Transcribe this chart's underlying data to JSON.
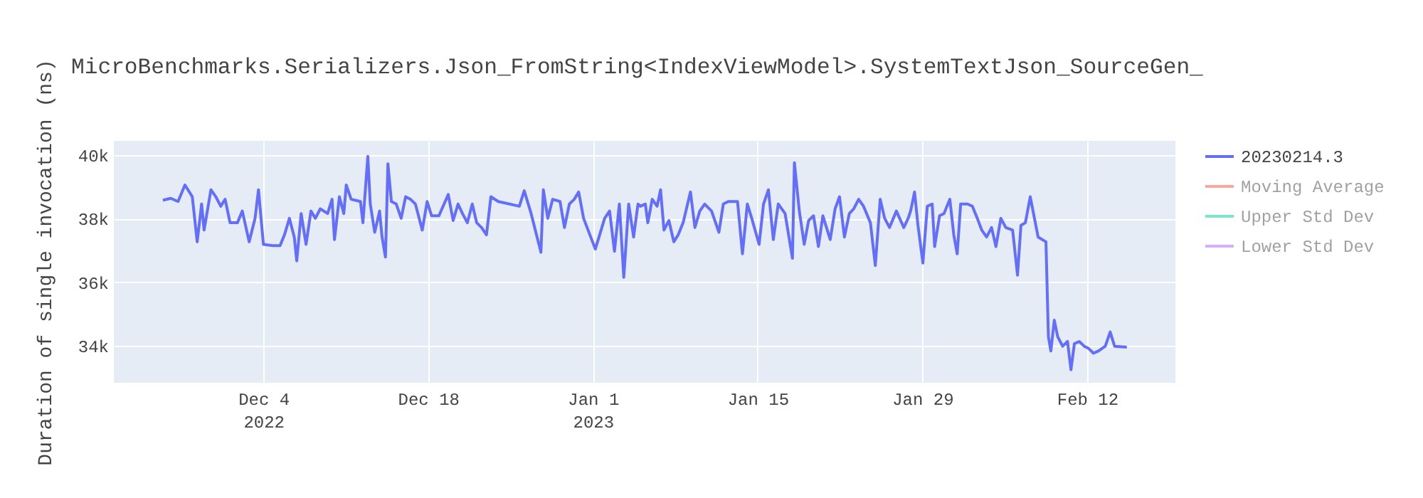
{
  "chart_data": {
    "type": "line",
    "title": "MicroBenchmarks.Serializers.Json_FromString<IndexViewModel>.SystemTextJson_SourceGen_",
    "ylabel": "Duration of single invocation (ns)",
    "x": [
      "2022-11-25T11:00",
      "2022-11-26T03:00",
      "2022-11-26T18:00",
      "2022-11-27T08:00",
      "2022-11-27T23:00",
      "2022-11-28T09:00",
      "2022-11-28T18:00",
      "2022-11-28T23:00",
      "2022-11-29T04:00",
      "2022-11-29T13:00",
      "2022-11-29T23:00",
      "2022-11-30T09:00",
      "2022-11-30T18:00",
      "2022-12-01T04:00",
      "2022-12-01T19:00",
      "2022-12-02T05:00",
      "2022-12-02T19:00",
      "2022-12-03T07:00",
      "2022-12-03T14:00",
      "2022-12-04T00:00",
      "2022-12-04T19:00",
      "2022-12-05T10:00",
      "2022-12-05T19:00",
      "2022-12-06T05:00",
      "2022-12-06T15:00",
      "2022-12-06T20:00",
      "2022-12-07T05:00",
      "2022-12-07T15:00",
      "2022-12-08T01:00",
      "2022-12-08T10:00",
      "2022-12-08T20:00",
      "2022-12-09T11:00",
      "2022-12-09T20:00",
      "2022-12-10T01:00",
      "2022-12-10T11:00",
      "2022-12-10T20:00",
      "2022-12-11T01:00",
      "2022-12-11T11:00",
      "2022-12-12T06:00",
      "2022-12-12T11:00",
      "2022-12-12T21:00",
      "2022-12-13T02:00",
      "2022-12-13T11:00",
      "2022-12-13T21:00",
      "2022-12-14T02:00",
      "2022-12-14T09:00",
      "2022-12-14T14:00",
      "2022-12-14T21:00",
      "2022-12-15T07:00",
      "2022-12-15T17:00",
      "2022-12-16T02:00",
      "2022-12-16T12:00",
      "2022-12-16T22:00",
      "2022-12-17T12:00",
      "2022-12-17T22:00",
      "2022-12-18T07:00",
      "2022-12-18T22:00",
      "2022-12-19T17:00",
      "2022-12-20T03:00",
      "2022-12-20T13:00",
      "2022-12-20T22:00",
      "2022-12-21T08:00",
      "2022-12-21T18:00",
      "2022-12-22T03:00",
      "2022-12-22T13:00",
      "2022-12-22T23:00",
      "2022-12-23T08:00",
      "2022-12-23T23:00",
      "2022-12-25T18:00",
      "2022-12-26T04:00",
      "2022-12-26T18:00",
      "2022-12-27T14:00",
      "2022-12-27T19:00",
      "2022-12-28T04:00",
      "2022-12-28T14:00",
      "2022-12-29T05:00",
      "2022-12-29T14:00",
      "2022-12-30T00:00",
      "2022-12-30T10:00",
      "2022-12-30T19:00",
      "2022-12-31T05:00",
      "2023-01-01T05:00",
      "2023-01-02T00:00",
      "2023-01-02T10:00",
      "2023-01-02T20:00",
      "2023-01-03T06:00",
      "2023-01-03T15:00",
      "2023-01-04T01:00",
      "2023-01-04T11:00",
      "2023-01-04T20:00",
      "2023-01-05T01:00",
      "2023-01-05T11:00",
      "2023-01-05T16:00",
      "2023-01-06T01:00",
      "2023-01-06T11:00",
      "2023-01-06T18:00",
      "2023-01-07T01:00",
      "2023-01-07T11:00",
      "2023-01-07T21:00",
      "2023-01-08T06:00",
      "2023-01-08T16:00",
      "2023-01-09T07:00",
      "2023-01-09T16:00",
      "2023-01-10T02:00",
      "2023-01-10T12:00",
      "2023-01-11T02:00",
      "2023-01-11T17:00",
      "2023-01-12T02:00",
      "2023-01-12T12:00",
      "2023-01-13T07:00",
      "2023-01-13T17:00",
      "2023-01-14T03:00",
      "2023-01-14T12:00",
      "2023-01-15T03:00",
      "2023-01-15T12:00",
      "2023-01-15T22:00",
      "2023-01-16T08:00",
      "2023-01-16T18:00",
      "2023-01-17T08:00",
      "2023-01-17T23:00",
      "2023-01-18T03:00",
      "2023-01-18T13:00",
      "2023-01-18T23:00",
      "2023-01-19T08:00",
      "2023-01-19T18:00",
      "2023-01-20T04:00",
      "2023-01-20T13:00",
      "2023-01-21T04:00",
      "2023-01-21T14:00",
      "2023-01-21T23:00",
      "2023-01-22T09:00",
      "2023-01-22T19:00",
      "2023-01-23T04:00",
      "2023-01-23T14:00",
      "2023-01-24T00:00",
      "2023-01-24T14:00",
      "2023-01-25T00:00",
      "2023-01-25T10:00",
      "2023-01-25T19:00",
      "2023-01-26T05:00",
      "2023-01-26T19:00",
      "2023-01-27T10:00",
      "2023-01-27T19:00",
      "2023-01-28T00:00",
      "2023-01-28T08:00",
      "2023-01-28T15:00",
      "2023-01-29T01:00",
      "2023-01-29T10:00",
      "2023-01-29T20:00",
      "2023-01-30T01:00",
      "2023-01-30T11:00",
      "2023-01-30T20:00",
      "2023-01-31T08:00",
      "2023-01-31T16:00",
      "2023-01-31T23:00",
      "2023-02-01T06:00",
      "2023-02-01T20:00",
      "2023-02-02T06:00",
      "2023-02-02T16:00",
      "2023-02-03T01:00",
      "2023-02-03T11:00",
      "2023-02-03T21:00",
      "2023-02-04T06:00",
      "2023-02-04T16:00",
      "2023-02-05T02:00",
      "2023-02-05T16:00",
      "2023-02-06T02:00",
      "2023-02-06T09:00",
      "2023-02-06T18:00",
      "2023-02-07T04:00",
      "2023-02-07T20:00",
      "2023-02-08T12:00",
      "2023-02-08T17:00",
      "2023-02-08T22:00",
      "2023-02-09T05:00",
      "2023-02-09T12:00",
      "2023-02-09T22:00",
      "2023-02-10T08:00",
      "2023-02-10T15:00",
      "2023-02-10T22:00",
      "2023-02-11T08:00",
      "2023-02-11T18:00",
      "2023-02-12T03:00",
      "2023-02-12T13:00",
      "2023-02-12T23:00",
      "2023-02-13T13:00",
      "2023-02-13T23:00",
      "2023-02-14T08:00",
      "2023-02-15T09:00"
    ],
    "series": [
      {
        "name": "20230214.3",
        "color": "#636efa",
        "values": [
          38580,
          38640,
          38540,
          39060,
          38690,
          37270,
          38460,
          37640,
          38090,
          38910,
          38690,
          38390,
          38610,
          37870,
          37870,
          38240,
          37270,
          38010,
          38910,
          37190,
          37150,
          37150,
          37490,
          38010,
          37420,
          36670,
          38160,
          37190,
          38240,
          38010,
          38310,
          38160,
          38610,
          37340,
          38690,
          38160,
          39060,
          38610,
          38540,
          37870,
          39960,
          38460,
          37570,
          38240,
          37420,
          36790,
          39730,
          38540,
          38460,
          38010,
          38690,
          38610,
          38460,
          37640,
          38540,
          38090,
          38090,
          38760,
          37940,
          38460,
          38160,
          37870,
          38460,
          37870,
          37720,
          37490,
          38690,
          38540,
          38390,
          38880,
          38160,
          36940,
          38910,
          38010,
          38610,
          38540,
          37720,
          38460,
          38610,
          38840,
          38010,
          37040,
          38010,
          38240,
          36970,
          38460,
          36150,
          38460,
          37420,
          38460,
          38390,
          38460,
          37870,
          38610,
          38390,
          38910,
          37640,
          37940,
          37270,
          37490,
          37870,
          38840,
          37720,
          38240,
          38460,
          38240,
          37570,
          38460,
          38540,
          38540,
          36890,
          38460,
          38010,
          37190,
          38460,
          38910,
          37340,
          38460,
          38160,
          36750,
          39760,
          38240,
          37190,
          37940,
          38090,
          37120,
          38090,
          37340,
          38310,
          38690,
          37420,
          38160,
          38310,
          38610,
          38390,
          37870,
          36520,
          38610,
          38010,
          37720,
          38240,
          37720,
          38010,
          38240,
          38840,
          37790,
          36600,
          38390,
          38460,
          37120,
          38090,
          38160,
          38610,
          37490,
          36890,
          38460,
          38460,
          38390,
          38010,
          37640,
          37420,
          37720,
          37120,
          38010,
          37720,
          37640,
          36220,
          37790,
          37870,
          38690,
          37420,
          37270,
          34280,
          33830,
          34800,
          34280,
          33980,
          34130,
          33240,
          34060,
          34130,
          33980,
          33910,
          33760,
          33830,
          33980,
          34430,
          33980,
          33950
        ]
      },
      {
        "name": "Moving Average",
        "color": "#ef553b",
        "values": [
          null,
          null,
          null,
          null,
          null,
          null,
          null,
          null,
          null,
          null,
          null,
          null,
          null,
          null,
          null,
          null,
          null,
          null,
          null,
          null,
          null,
          null,
          null,
          null,
          null,
          null,
          null,
          null,
          null,
          null,
          null,
          null,
          null,
          null,
          null,
          null,
          null,
          null,
          null,
          null,
          null,
          null,
          null,
          null,
          null,
          null,
          null,
          null,
          null,
          null,
          null,
          null,
          null,
          null,
          null,
          null,
          null,
          null,
          null,
          null,
          null,
          null,
          null,
          null,
          null,
          null,
          null,
          null,
          null,
          null,
          null,
          null,
          null,
          null,
          null,
          null,
          null,
          null,
          null,
          null,
          null,
          null,
          null,
          null,
          null,
          null,
          null,
          null,
          null,
          null,
          null,
          null,
          null,
          null,
          null,
          null,
          null,
          null,
          null,
          null,
          null,
          null,
          null,
          null,
          null,
          null,
          null,
          null,
          null,
          null,
          null,
          null,
          null,
          null,
          null,
          null,
          null,
          null,
          null,
          null,
          null,
          null,
          null,
          null,
          null,
          null,
          null,
          null,
          null,
          null,
          null,
          null,
          null,
          null,
          null,
          null,
          null,
          null,
          null,
          null,
          null,
          null,
          null,
          null,
          null,
          null,
          null,
          null,
          null,
          null,
          null,
          null,
          null,
          null,
          null,
          null,
          null,
          null,
          null,
          null,
          null,
          null,
          null,
          null,
          null,
          null,
          null,
          null,
          null,
          null,
          null,
          null,
          null,
          null,
          null,
          null,
          null,
          null,
          null,
          null,
          null,
          null,
          null,
          null,
          null,
          null,
          null,
          null,
          null
        ]
      },
      {
        "name": "Upper Std Dev",
        "color": "#00cc96",
        "values": [
          null,
          null,
          null,
          null,
          null,
          null,
          null,
          null,
          null,
          null,
          null,
          null,
          null,
          null,
          null,
          null,
          null,
          null,
          null,
          null,
          null,
          null,
          null,
          null,
          null,
          null,
          null,
          null,
          null,
          null,
          null,
          null,
          null,
          null,
          null,
          null,
          null,
          null,
          null,
          null,
          null,
          null,
          null,
          null,
          null,
          null,
          null,
          null,
          null,
          null,
          null,
          null,
          null,
          null,
          null,
          null,
          null,
          null,
          null,
          null,
          null,
          null,
          null,
          null,
          null,
          null,
          null,
          null,
          null,
          null,
          null,
          null,
          null,
          null,
          null,
          null,
          null,
          null,
          null,
          null,
          null,
          null,
          null,
          null,
          null,
          null,
          null,
          null,
          null,
          null,
          null,
          null,
          null,
          null,
          null,
          null,
          null,
          null,
          null,
          null,
          null,
          null,
          null,
          null,
          null,
          null,
          null,
          null,
          null,
          null,
          null,
          null,
          null,
          null,
          null,
          null,
          null,
          null,
          null,
          null,
          null,
          null,
          null,
          null,
          null,
          null,
          null,
          null,
          null,
          null,
          null,
          null,
          null,
          null,
          null,
          null,
          null,
          null,
          null,
          null,
          null,
          null,
          null,
          null,
          null,
          null,
          null,
          null,
          null,
          null,
          null,
          null,
          null,
          null,
          null,
          null,
          null,
          null,
          null,
          null,
          null,
          null,
          null,
          null,
          null,
          null,
          null,
          null,
          null,
          null,
          null,
          null,
          null,
          null,
          null,
          null,
          null,
          null,
          null,
          null,
          null,
          null,
          null,
          null,
          null,
          null,
          null,
          null,
          null
        ]
      },
      {
        "name": "Lower Std Dev",
        "color": "#ab63fa",
        "values": [
          null,
          null,
          null,
          null,
          null,
          null,
          null,
          null,
          null,
          null,
          null,
          null,
          null,
          null,
          null,
          null,
          null,
          null,
          null,
          null,
          null,
          null,
          null,
          null,
          null,
          null,
          null,
          null,
          null,
          null,
          null,
          null,
          null,
          null,
          null,
          null,
          null,
          null,
          null,
          null,
          null,
          null,
          null,
          null,
          null,
          null,
          null,
          null,
          null,
          null,
          null,
          null,
          null,
          null,
          null,
          null,
          null,
          null,
          null,
          null,
          null,
          null,
          null,
          null,
          null,
          null,
          null,
          null,
          null,
          null,
          null,
          null,
          null,
          null,
          null,
          null,
          null,
          null,
          null,
          null,
          null,
          null,
          null,
          null,
          null,
          null,
          null,
          null,
          null,
          null,
          null,
          null,
          null,
          null,
          null,
          null,
          null,
          null,
          null,
          null,
          null,
          null,
          null,
          null,
          null,
          null,
          null,
          null,
          null,
          null,
          null,
          null,
          null,
          null,
          null,
          null,
          null,
          null,
          null,
          null,
          null,
          null,
          null,
          null,
          null,
          null,
          null,
          null,
          null,
          null,
          null,
          null,
          null,
          null,
          null,
          null,
          null,
          null,
          null,
          null,
          null,
          null,
          null,
          null,
          null,
          null,
          null,
          null,
          null,
          null,
          null,
          null,
          null,
          null,
          null,
          null,
          null,
          null,
          null,
          null,
          null,
          null,
          null,
          null,
          null,
          null,
          null,
          null,
          null,
          null,
          null,
          null,
          null,
          null,
          null,
          null,
          null,
          null,
          null,
          null,
          null,
          null,
          null,
          null,
          null,
          null,
          null,
          null,
          null
        ]
      }
    ],
    "xlim": [
      "2022-11-21T07:00",
      "2023-02-19T12:00"
    ],
    "xticks": [
      {
        "value": "2022-12-04",
        "label": "Dec 4\n2022"
      },
      {
        "value": "2022-12-18",
        "label": "Dec 18"
      },
      {
        "value": "2023-01-01",
        "label": "Jan 1\n2023"
      },
      {
        "value": "2023-01-15",
        "label": "Jan 15"
      },
      {
        "value": "2023-01-29",
        "label": "Jan 29"
      },
      {
        "value": "2023-02-12",
        "label": "Feb 12"
      }
    ],
    "ylim": [
      32830,
      40450
    ],
    "yticks": [
      {
        "value": 34000,
        "label": "34k"
      },
      {
        "value": 36000,
        "label": "36k"
      },
      {
        "value": 38000,
        "label": "38k"
      },
      {
        "value": 40000,
        "label": "40k"
      }
    ],
    "grid": true,
    "legend": "top right",
    "line_style": "solid"
  }
}
